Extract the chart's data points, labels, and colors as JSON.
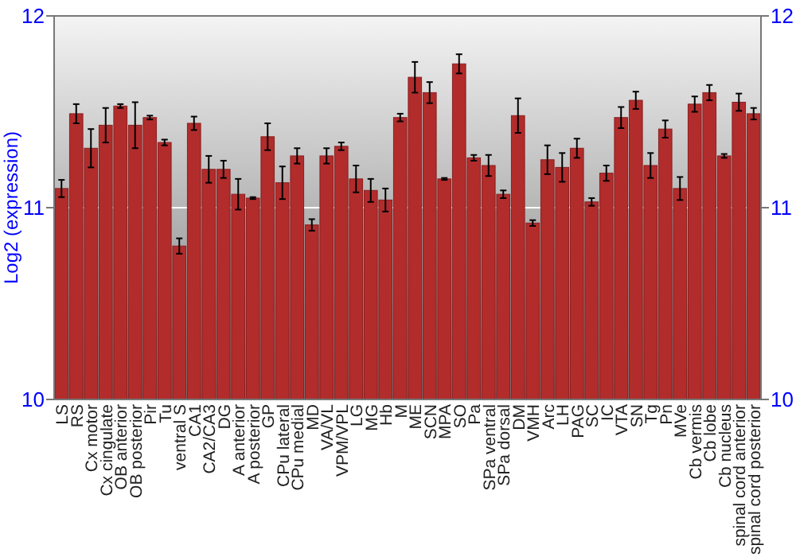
{
  "chart_data": {
    "type": "bar",
    "ylabel": "Log2 (expression)",
    "categories": [
      "LS",
      "RS",
      "Cx motor",
      "Cx cingulate",
      "OB anterior",
      "OB posterior",
      "Pir",
      "Tu",
      "ventral S",
      "CA1",
      "CA2/CA3",
      "DG",
      "A anterior",
      "A posterior",
      "GP",
      "CPu lateral",
      "CPu medial",
      "MD",
      "VA/VL",
      "VPM/VPL",
      "LG",
      "MG",
      "Hb",
      "M",
      "ME",
      "SCN",
      "MPA",
      "SO",
      "Pa",
      "SPa ventral",
      "SPa dorsal",
      "DM",
      "VMH",
      "Arc",
      "LH",
      "PAG",
      "SC",
      "IC",
      "VTA",
      "SN",
      "Tg",
      "Pn",
      "MVe",
      "Cb vermis",
      "Cb lobe",
      "Cb nucleus",
      "spinal cord anterior",
      "spinal cord posterior"
    ],
    "values": [
      11.1,
      11.49,
      11.31,
      11.43,
      11.53,
      11.43,
      11.47,
      11.34,
      10.8,
      11.44,
      11.2,
      11.2,
      11.07,
      11.05,
      11.37,
      11.13,
      11.27,
      10.91,
      11.27,
      11.32,
      11.15,
      11.09,
      11.04,
      11.47,
      11.68,
      11.6,
      11.15,
      11.75,
      11.26,
      11.22,
      11.07,
      11.48,
      10.92,
      11.25,
      11.21,
      11.31,
      11.03,
      11.18,
      11.47,
      11.56,
      11.22,
      11.41,
      11.1,
      11.54,
      11.6,
      11.27,
      11.55,
      11.49
    ],
    "errors": [
      0.045,
      0.05,
      0.1,
      0.09,
      0.01,
      0.12,
      0.01,
      0.015,
      0.04,
      0.035,
      0.07,
      0.045,
      0.08,
      0.005,
      0.07,
      0.085,
      0.04,
      0.03,
      0.04,
      0.02,
      0.07,
      0.06,
      0.06,
      0.02,
      0.08,
      0.055,
      0.005,
      0.05,
      0.015,
      0.055,
      0.02,
      0.09,
      0.015,
      0.075,
      0.075,
      0.05,
      0.02,
      0.04,
      0.055,
      0.045,
      0.065,
      0.045,
      0.06,
      0.04,
      0.04,
      0.01,
      0.045,
      0.03
    ],
    "color": "#b22c2c",
    "ylim": [
      10,
      12
    ],
    "yticks": [
      10,
      11,
      12
    ],
    "y2lim": [
      10,
      12
    ],
    "y2ticks": [
      10,
      11,
      12
    ],
    "grid": "y"
  }
}
